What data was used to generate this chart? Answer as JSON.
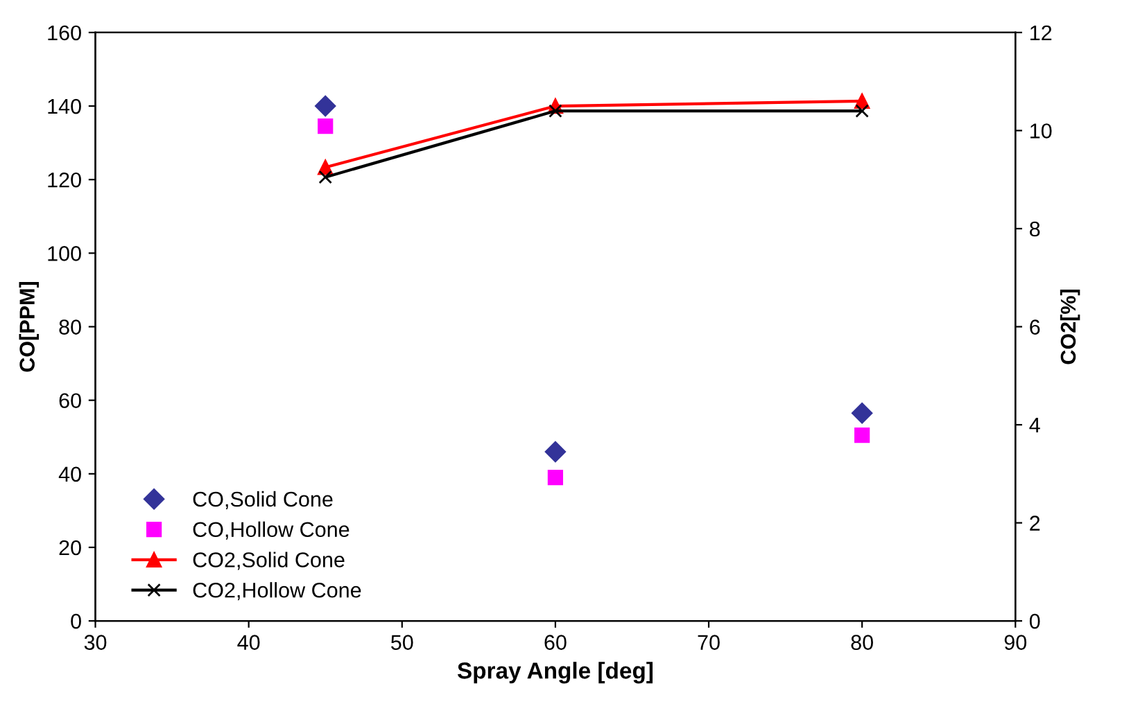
{
  "chart_data": {
    "type": "scatter",
    "xlabel": "Spray Angle [deg]",
    "ylabel": "CO[PPM]",
    "y2label": "CO2[%]",
    "x": [
      45,
      60,
      80
    ],
    "series": [
      {
        "name": "CO,Solid Cone",
        "color": "#333399",
        "marker": "diamond",
        "values": [
          140,
          46,
          56.5
        ]
      },
      {
        "name": "CO,Hollow Cone",
        "color": "#ff00ff",
        "marker": "square",
        "values": [
          134.5,
          39,
          50.5
        ]
      },
      {
        "name": "CO2,Solid Cone",
        "type": "line",
        "axis": "y2",
        "color": "#ff0000",
        "marker": "triangle",
        "values": [
          9.25,
          10.5,
          10.6
        ]
      },
      {
        "name": "CO2,Hollow Cone",
        "type": "line",
        "axis": "y2",
        "color": "#000000",
        "marker": "cross",
        "values": [
          9.05,
          10.4,
          10.4
        ]
      }
    ],
    "xlim": [
      30,
      90
    ],
    "xticks": [
      30,
      40,
      50,
      60,
      70,
      80,
      90
    ],
    "ylim": [
      0,
      160
    ],
    "yticks": [
      0,
      20,
      40,
      60,
      80,
      100,
      120,
      140,
      160
    ],
    "y2lim": [
      0,
      12
    ],
    "y2ticks": [
      0,
      2,
      4,
      6,
      8,
      10,
      12
    ],
    "legend": "bottom left",
    "grid": false
  }
}
